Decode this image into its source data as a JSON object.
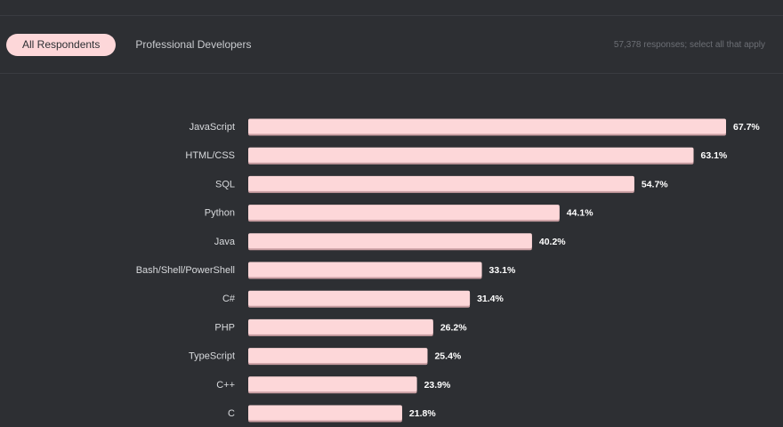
{
  "tabs": [
    {
      "label": "All Respondents",
      "active": true
    },
    {
      "label": "Professional Developers",
      "active": false
    }
  ],
  "responses_note": "57,378 responses; select all that apply",
  "colors": {
    "background": "#2d2f33",
    "bar": "#fdd7d9",
    "bar_shadow": "#c99ea2",
    "label": "#d8dadd",
    "value_label": "#ffffff"
  },
  "chart_data": {
    "type": "bar",
    "orientation": "horizontal",
    "categories": [
      "JavaScript",
      "HTML/CSS",
      "SQL",
      "Python",
      "Java",
      "Bash/Shell/PowerShell",
      "C#",
      "PHP",
      "TypeScript",
      "C++",
      "C"
    ],
    "values": [
      67.7,
      63.1,
      54.7,
      44.1,
      40.2,
      33.1,
      31.4,
      26.2,
      25.4,
      23.9,
      21.8
    ],
    "value_labels": [
      "67.7%",
      "63.1%",
      "54.7%",
      "44.1%",
      "40.2%",
      "33.1%",
      "31.4%",
      "26.2%",
      "25.4%",
      "23.9%",
      "21.8%"
    ],
    "title": "",
    "xlabel": "",
    "ylabel": "",
    "xlim": [
      0,
      67.7
    ],
    "grid": false,
    "legend": "none"
  }
}
